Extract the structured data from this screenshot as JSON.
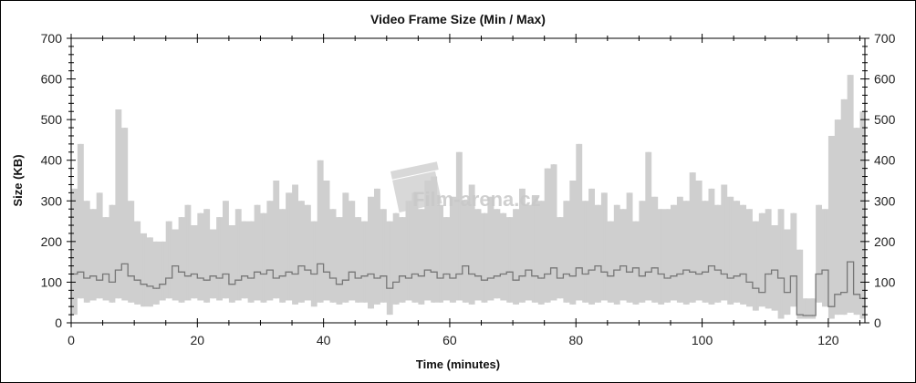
{
  "chart_data": {
    "type": "area",
    "title": "Video Frame Size (Min / Max)",
    "xlabel": "Time (minutes)",
    "ylabel": "Size (KB)",
    "xlim": [
      0,
      125.8
    ],
    "ylim": [
      0,
      700
    ],
    "x_ticks": [
      0,
      20,
      40,
      60,
      80,
      100,
      120
    ],
    "y_ticks": [
      0,
      100,
      200,
      300,
      400,
      500,
      600,
      700
    ],
    "y_ticks_right": true,
    "grid": false,
    "colors": {
      "range": "#cfcfcf",
      "line": "#777777"
    },
    "watermark": "Film-arena.cz",
    "x": [
      0,
      1,
      2,
      3,
      4,
      5,
      6,
      7,
      8,
      9,
      10,
      11,
      12,
      13,
      14,
      15,
      16,
      17,
      18,
      19,
      20,
      21,
      22,
      23,
      24,
      25,
      26,
      27,
      28,
      29,
      30,
      31,
      32,
      33,
      34,
      35,
      36,
      37,
      38,
      39,
      40,
      41,
      42,
      43,
      44,
      45,
      46,
      47,
      48,
      49,
      50,
      51,
      52,
      53,
      54,
      55,
      56,
      57,
      58,
      59,
      60,
      61,
      62,
      63,
      64,
      65,
      66,
      67,
      68,
      69,
      70,
      71,
      72,
      73,
      74,
      75,
      76,
      77,
      78,
      79,
      80,
      81,
      82,
      83,
      84,
      85,
      86,
      87,
      88,
      89,
      90,
      91,
      92,
      93,
      94,
      95,
      96,
      97,
      98,
      99,
      100,
      101,
      102,
      103,
      104,
      105,
      106,
      107,
      108,
      109,
      110,
      111,
      112,
      113,
      114,
      115,
      116,
      117,
      118,
      119,
      120,
      121,
      122,
      123,
      124,
      125
    ],
    "series": [
      {
        "role": "max",
        "values": [
          330,
          440,
          300,
          280,
          320,
          260,
          290,
          525,
          480,
          300,
          250,
          220,
          210,
          200,
          200,
          250,
          230,
          260,
          290,
          240,
          270,
          280,
          230,
          260,
          300,
          240,
          280,
          250,
          250,
          290,
          270,
          300,
          350,
          280,
          320,
          340,
          300,
          290,
          250,
          400,
          350,
          280,
          260,
          320,
          300,
          260,
          250,
          310,
          330,
          280,
          250,
          270,
          260,
          300,
          320,
          280,
          350,
          360,
          290,
          260,
          310,
          420,
          300,
          340,
          280,
          270,
          310,
          280,
          270,
          260,
          280,
          330,
          290,
          310,
          300,
          380,
          390,
          260,
          300,
          350,
          440,
          300,
          330,
          290,
          320,
          250,
          290,
          280,
          320,
          250,
          300,
          420,
          310,
          280,
          280,
          290,
          310,
          300,
          370,
          350,
          300,
          330,
          290,
          340,
          310,
          300,
          290,
          280,
          250,
          270,
          280,
          240,
          280,
          230,
          270,
          180,
          60,
          60,
          290,
          280,
          460,
          500,
          550,
          610,
          480,
          520
        ]
      },
      {
        "role": "min",
        "values": [
          20,
          60,
          50,
          55,
          60,
          55,
          50,
          60,
          55,
          50,
          45,
          40,
          40,
          45,
          55,
          60,
          55,
          50,
          55,
          60,
          55,
          50,
          60,
          55,
          60,
          50,
          55,
          60,
          50,
          55,
          50,
          55,
          60,
          50,
          55,
          45,
          50,
          55,
          40,
          50,
          55,
          50,
          45,
          50,
          55,
          50,
          50,
          35,
          45,
          50,
          20,
          45,
          50,
          55,
          50,
          45,
          55,
          50,
          50,
          55,
          50,
          55,
          50,
          45,
          55,
          50,
          55,
          60,
          55,
          50,
          45,
          50,
          55,
          50,
          45,
          50,
          55,
          60,
          50,
          45,
          55,
          50,
          45,
          50,
          55,
          50,
          45,
          55,
          50,
          45,
          50,
          55,
          50,
          45,
          50,
          55,
          50,
          45,
          50,
          55,
          50,
          45,
          50,
          55,
          45,
          50,
          45,
          40,
          30,
          40,
          35,
          30,
          10,
          20,
          40,
          10,
          10,
          10,
          50,
          40,
          10,
          20,
          20,
          25,
          20,
          10
        ]
      },
      {
        "role": "line",
        "values": [
          120,
          125,
          110,
          115,
          105,
          120,
          100,
          130,
          145,
          115,
          105,
          95,
          90,
          85,
          95,
          110,
          140,
          125,
          115,
          120,
          110,
          105,
          115,
          110,
          120,
          95,
          105,
          115,
          110,
          125,
          120,
          130,
          110,
          115,
          125,
          120,
          140,
          130,
          120,
          145,
          125,
          110,
          95,
          105,
          125,
          110,
          115,
          120,
          110,
          115,
          85,
          100,
          115,
          110,
          120,
          115,
          130,
          125,
          110,
          120,
          110,
          120,
          140,
          120,
          115,
          105,
          110,
          115,
          120,
          125,
          105,
          115,
          130,
          115,
          110,
          120,
          135,
          110,
          120,
          115,
          135,
          120,
          130,
          140,
          125,
          115,
          130,
          140,
          125,
          135,
          115,
          125,
          135,
          120,
          110,
          115,
          120,
          130,
          125,
          120,
          125,
          140,
          130,
          120,
          110,
          115,
          120,
          100,
          85,
          75,
          120,
          130,
          110,
          75,
          115,
          20,
          18,
          18,
          120,
          130,
          40,
          70,
          75,
          150,
          70,
          60
        ]
      }
    ]
  }
}
